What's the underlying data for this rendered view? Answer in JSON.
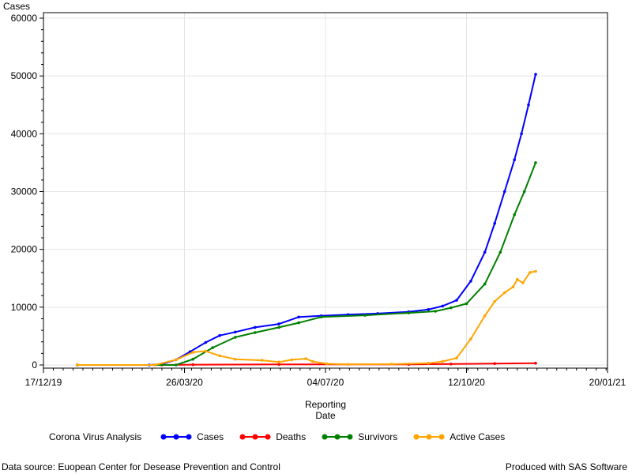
{
  "chart_data": {
    "type": "line",
    "ylabel": "Cases",
    "xlabel_line1": "Reporting",
    "xlabel_line2": "Date",
    "ylim": [
      0,
      60000
    ],
    "yticks": [
      0,
      10000,
      20000,
      30000,
      40000,
      50000,
      60000
    ],
    "xlim": [
      "2019-12-17",
      "2021-01-20"
    ],
    "xticks": [
      {
        "date": "2019-12-17",
        "label": "17/12/19"
      },
      {
        "date": "2020-03-26",
        "label": "26/03/20"
      },
      {
        "date": "2020-07-04",
        "label": "04/07/20"
      },
      {
        "date": "2020-10-12",
        "label": "12/10/20"
      },
      {
        "date": "2021-01-20",
        "label": "20/01/21"
      }
    ],
    "grid": true,
    "legend_title": "Corona Virus Analysis",
    "legend_position": "bottom",
    "series": [
      {
        "name": "Cases",
        "color": "#0000ff",
        "points": [
          [
            "2020-01-10",
            0
          ],
          [
            "2020-03-01",
            0
          ],
          [
            "2020-03-10",
            150
          ],
          [
            "2020-03-20",
            900
          ],
          [
            "2020-03-30",
            2300
          ],
          [
            "2020-04-10",
            3900
          ],
          [
            "2020-04-20",
            5100
          ],
          [
            "2020-05-01",
            5700
          ],
          [
            "2020-05-15",
            6500
          ],
          [
            "2020-06-01",
            7100
          ],
          [
            "2020-06-15",
            8300
          ],
          [
            "2020-07-01",
            8500
          ],
          [
            "2020-07-20",
            8700
          ],
          [
            "2020-08-10",
            8900
          ],
          [
            "2020-09-01",
            9200
          ],
          [
            "2020-09-15",
            9600
          ],
          [
            "2020-09-25",
            10200
          ],
          [
            "2020-10-05",
            11200
          ],
          [
            "2020-10-15",
            14500
          ],
          [
            "2020-10-25",
            19500
          ],
          [
            "2020-11-01",
            24500
          ],
          [
            "2020-11-08",
            30000
          ],
          [
            "2020-11-15",
            35500
          ],
          [
            "2020-11-20",
            40000
          ],
          [
            "2020-11-25",
            45000
          ],
          [
            "2020-11-30",
            50300
          ]
        ]
      },
      {
        "name": "Deaths",
        "color": "#ff0000",
        "points": [
          [
            "2020-01-10",
            0
          ],
          [
            "2020-03-10",
            0
          ],
          [
            "2020-04-01",
            60
          ],
          [
            "2020-06-01",
            90
          ],
          [
            "2020-09-01",
            110
          ],
          [
            "2020-10-01",
            160
          ],
          [
            "2020-11-01",
            250
          ],
          [
            "2020-11-30",
            320
          ]
        ]
      },
      {
        "name": "Survivors",
        "color": "#008000",
        "points": [
          [
            "2020-01-10",
            0
          ],
          [
            "2020-03-20",
            0
          ],
          [
            "2020-04-01",
            1000
          ],
          [
            "2020-04-15",
            3000
          ],
          [
            "2020-05-01",
            4800
          ],
          [
            "2020-05-15",
            5600
          ],
          [
            "2020-06-01",
            6500
          ],
          [
            "2020-06-15",
            7300
          ],
          [
            "2020-07-01",
            8300
          ],
          [
            "2020-08-01",
            8600
          ],
          [
            "2020-09-01",
            9000
          ],
          [
            "2020-09-20",
            9300
          ],
          [
            "2020-10-01",
            9900
          ],
          [
            "2020-10-12",
            10600
          ],
          [
            "2020-10-25",
            14000
          ],
          [
            "2020-11-05",
            19500
          ],
          [
            "2020-11-15",
            26000
          ],
          [
            "2020-11-22",
            30000
          ],
          [
            "2020-11-30",
            35000
          ]
        ]
      },
      {
        "name": "Active Cases",
        "color": "#ffa500",
        "points": [
          [
            "2020-01-10",
            0
          ],
          [
            "2020-03-05",
            0
          ],
          [
            "2020-03-20",
            900
          ],
          [
            "2020-04-01",
            2200
          ],
          [
            "2020-04-10",
            2400
          ],
          [
            "2020-04-20",
            1600
          ],
          [
            "2020-05-01",
            1000
          ],
          [
            "2020-05-20",
            800
          ],
          [
            "2020-06-01",
            500
          ],
          [
            "2020-06-10",
            900
          ],
          [
            "2020-06-20",
            1100
          ],
          [
            "2020-06-25",
            600
          ],
          [
            "2020-07-05",
            200
          ],
          [
            "2020-07-20",
            100
          ],
          [
            "2020-08-20",
            150
          ],
          [
            "2020-09-15",
            300
          ],
          [
            "2020-09-25",
            600
          ],
          [
            "2020-10-05",
            1200
          ],
          [
            "2020-10-15",
            4500
          ],
          [
            "2020-10-25",
            8500
          ],
          [
            "2020-11-01",
            11000
          ],
          [
            "2020-11-08",
            12500
          ],
          [
            "2020-11-14",
            13500
          ],
          [
            "2020-11-17",
            14800
          ],
          [
            "2020-11-21",
            14200
          ],
          [
            "2020-11-26",
            16000
          ],
          [
            "2020-11-30",
            16200
          ]
        ]
      }
    ]
  },
  "footer": {
    "source": "Data source: Euopean Center for Desease Prevention and Control",
    "credit": "Produced with SAS Software"
  }
}
